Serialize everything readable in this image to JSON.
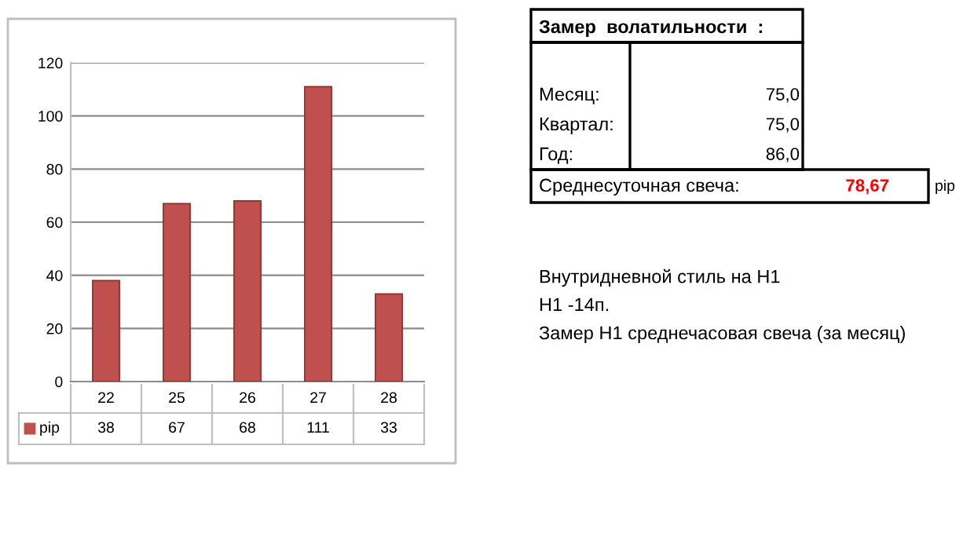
{
  "chart_data": {
    "type": "bar",
    "categories": [
      "22",
      "25",
      "26",
      "27",
      "28"
    ],
    "series": [
      {
        "name": "pip",
        "color": "#c0504d",
        "values": [
          38,
          67,
          68,
          111,
          33
        ]
      }
    ],
    "ylim": [
      0,
      120
    ],
    "yticks": [
      0,
      20,
      40,
      60,
      80,
      100,
      120
    ],
    "grid": "y",
    "data_labels": true,
    "legend": "bottom",
    "annotations": [
      "Замер  волатильности  :",
      "Месяц:",
      "75,0",
      "Квартал:",
      "75,0",
      "Год:",
      "86,0",
      "Среднесуточная свеча:",
      "78,67",
      "pip",
      "Внутридневной стиль на H1",
      "H1 -14п.",
      "Замер H1 среднечасовая свеча (за месяц)"
    ]
  }
}
